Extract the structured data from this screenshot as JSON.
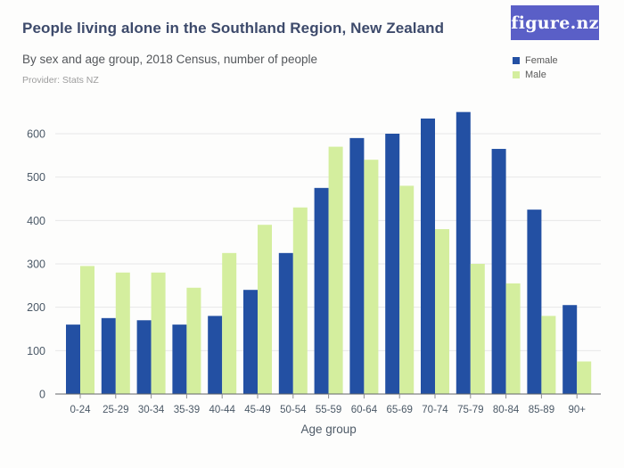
{
  "header": {
    "title": "People living alone in the Southland Region, New Zealand",
    "subtitle": "By sex and age group, 2018 Census, number of people",
    "provider": "Provider: Stats NZ",
    "logo_text": "figure.nz"
  },
  "legend": {
    "items": [
      {
        "label": "Female",
        "color": "#2350a3"
      },
      {
        "label": "Male",
        "color": "#d4ee9e"
      }
    ]
  },
  "colors": {
    "logo_background": "#5a5fc7",
    "title_text": "#3d4a6b",
    "grid": "#e7e7e7",
    "axis_line": "#626569"
  },
  "chart_data": {
    "type": "bar",
    "title": "People living alone in the Southland Region, New Zealand",
    "subtitle": "By sex and age group, 2018 Census, number of people",
    "categories": [
      "0-24",
      "25-29",
      "30-34",
      "35-39",
      "40-44",
      "45-49",
      "50-54",
      "55-59",
      "60-64",
      "65-69",
      "70-74",
      "75-79",
      "80-84",
      "85-89",
      "90+"
    ],
    "series": [
      {
        "name": "Female",
        "color": "#2350a3",
        "values": [
          160,
          175,
          170,
          160,
          180,
          240,
          325,
          475,
          590,
          600,
          635,
          650,
          565,
          425,
          205
        ]
      },
      {
        "name": "Male",
        "color": "#d4ee9e",
        "values": [
          295,
          280,
          280,
          245,
          325,
          390,
          430,
          570,
          540,
          480,
          380,
          300,
          255,
          180,
          75
        ]
      }
    ],
    "xlabel": "Age group",
    "ylabel": "",
    "ylim": [
      0,
      670
    ],
    "yticks": [
      0,
      100,
      200,
      300,
      400,
      500,
      600
    ],
    "grid": true,
    "legend_position": "top-right"
  }
}
